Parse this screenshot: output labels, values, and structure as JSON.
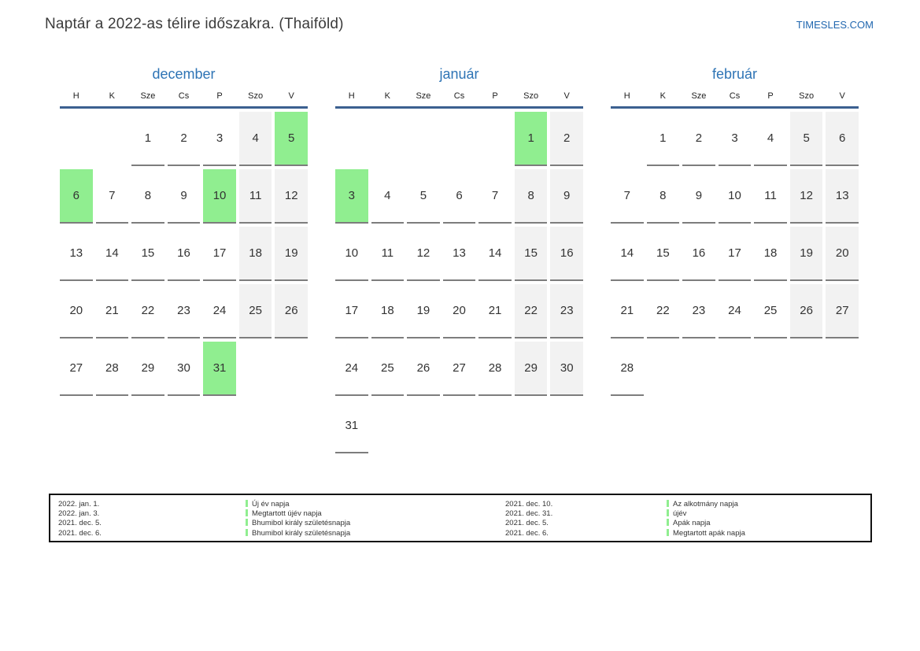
{
  "page": {
    "title": "Naptár a 2022-as télire időszakra. (Thaiföld)",
    "site_link": "TIMESLES.COM"
  },
  "colors": {
    "accent_blue": "#2e74b5",
    "link_blue": "#2268b0",
    "header_line": "#3c6090",
    "holiday_green": "#90ee90",
    "weekend_gray": "#f2f2f2",
    "underline_gray": "#7d7d7d"
  },
  "day_headers": [
    "H",
    "K",
    "Sze",
    "Cs",
    "P",
    "Szo",
    "V"
  ],
  "months": [
    {
      "name": "december",
      "weeks": [
        [
          {
            "d": "",
            "t": "e"
          },
          {
            "d": "",
            "t": "e"
          },
          {
            "d": "1",
            "t": "n"
          },
          {
            "d": "2",
            "t": "n"
          },
          {
            "d": "3",
            "t": "n"
          },
          {
            "d": "4",
            "t": "w"
          },
          {
            "d": "5",
            "t": "h"
          }
        ],
        [
          {
            "d": "6",
            "t": "h"
          },
          {
            "d": "7",
            "t": "n"
          },
          {
            "d": "8",
            "t": "n"
          },
          {
            "d": "9",
            "t": "n"
          },
          {
            "d": "10",
            "t": "h"
          },
          {
            "d": "11",
            "t": "w"
          },
          {
            "d": "12",
            "t": "w"
          }
        ],
        [
          {
            "d": "13",
            "t": "n"
          },
          {
            "d": "14",
            "t": "n"
          },
          {
            "d": "15",
            "t": "n"
          },
          {
            "d": "16",
            "t": "n"
          },
          {
            "d": "17",
            "t": "n"
          },
          {
            "d": "18",
            "t": "w"
          },
          {
            "d": "19",
            "t": "w"
          }
        ],
        [
          {
            "d": "20",
            "t": "n"
          },
          {
            "d": "21",
            "t": "n"
          },
          {
            "d": "22",
            "t": "n"
          },
          {
            "d": "23",
            "t": "n"
          },
          {
            "d": "24",
            "t": "n"
          },
          {
            "d": "25",
            "t": "w"
          },
          {
            "d": "26",
            "t": "w"
          }
        ],
        [
          {
            "d": "27",
            "t": "n"
          },
          {
            "d": "28",
            "t": "n"
          },
          {
            "d": "29",
            "t": "n"
          },
          {
            "d": "30",
            "t": "n"
          },
          {
            "d": "31",
            "t": "h"
          },
          {
            "d": "",
            "t": "e"
          },
          {
            "d": "",
            "t": "e"
          }
        ]
      ]
    },
    {
      "name": "január",
      "weeks": [
        [
          {
            "d": "",
            "t": "e"
          },
          {
            "d": "",
            "t": "e"
          },
          {
            "d": "",
            "t": "e"
          },
          {
            "d": "",
            "t": "e"
          },
          {
            "d": "",
            "t": "e"
          },
          {
            "d": "1",
            "t": "h"
          },
          {
            "d": "2",
            "t": "w"
          }
        ],
        [
          {
            "d": "3",
            "t": "h"
          },
          {
            "d": "4",
            "t": "n"
          },
          {
            "d": "5",
            "t": "n"
          },
          {
            "d": "6",
            "t": "n"
          },
          {
            "d": "7",
            "t": "n"
          },
          {
            "d": "8",
            "t": "w"
          },
          {
            "d": "9",
            "t": "w"
          }
        ],
        [
          {
            "d": "10",
            "t": "n"
          },
          {
            "d": "11",
            "t": "n"
          },
          {
            "d": "12",
            "t": "n"
          },
          {
            "d": "13",
            "t": "n"
          },
          {
            "d": "14",
            "t": "n"
          },
          {
            "d": "15",
            "t": "w"
          },
          {
            "d": "16",
            "t": "w"
          }
        ],
        [
          {
            "d": "17",
            "t": "n"
          },
          {
            "d": "18",
            "t": "n"
          },
          {
            "d": "19",
            "t": "n"
          },
          {
            "d": "20",
            "t": "n"
          },
          {
            "d": "21",
            "t": "n"
          },
          {
            "d": "22",
            "t": "w"
          },
          {
            "d": "23",
            "t": "w"
          }
        ],
        [
          {
            "d": "24",
            "t": "n"
          },
          {
            "d": "25",
            "t": "n"
          },
          {
            "d": "26",
            "t": "n"
          },
          {
            "d": "27",
            "t": "n"
          },
          {
            "d": "28",
            "t": "n"
          },
          {
            "d": "29",
            "t": "w"
          },
          {
            "d": "30",
            "t": "w"
          }
        ],
        [
          {
            "d": "31",
            "t": "n"
          },
          {
            "d": "",
            "t": "e"
          },
          {
            "d": "",
            "t": "e"
          },
          {
            "d": "",
            "t": "e"
          },
          {
            "d": "",
            "t": "e"
          },
          {
            "d": "",
            "t": "e"
          },
          {
            "d": "",
            "t": "e"
          }
        ]
      ]
    },
    {
      "name": "február",
      "weeks": [
        [
          {
            "d": "",
            "t": "e"
          },
          {
            "d": "1",
            "t": "n"
          },
          {
            "d": "2",
            "t": "n"
          },
          {
            "d": "3",
            "t": "n"
          },
          {
            "d": "4",
            "t": "n"
          },
          {
            "d": "5",
            "t": "w"
          },
          {
            "d": "6",
            "t": "w"
          }
        ],
        [
          {
            "d": "7",
            "t": "n"
          },
          {
            "d": "8",
            "t": "n"
          },
          {
            "d": "9",
            "t": "n"
          },
          {
            "d": "10",
            "t": "n"
          },
          {
            "d": "11",
            "t": "n"
          },
          {
            "d": "12",
            "t": "w"
          },
          {
            "d": "13",
            "t": "w"
          }
        ],
        [
          {
            "d": "14",
            "t": "n"
          },
          {
            "d": "15",
            "t": "n"
          },
          {
            "d": "16",
            "t": "n"
          },
          {
            "d": "17",
            "t": "n"
          },
          {
            "d": "18",
            "t": "n"
          },
          {
            "d": "19",
            "t": "w"
          },
          {
            "d": "20",
            "t": "w"
          }
        ],
        [
          {
            "d": "21",
            "t": "n"
          },
          {
            "d": "22",
            "t": "n"
          },
          {
            "d": "23",
            "t": "n"
          },
          {
            "d": "24",
            "t": "n"
          },
          {
            "d": "25",
            "t": "n"
          },
          {
            "d": "26",
            "t": "w"
          },
          {
            "d": "27",
            "t": "w"
          }
        ],
        [
          {
            "d": "28",
            "t": "n"
          },
          {
            "d": "",
            "t": "e"
          },
          {
            "d": "",
            "t": "e"
          },
          {
            "d": "",
            "t": "e"
          },
          {
            "d": "",
            "t": "e"
          },
          {
            "d": "",
            "t": "e"
          },
          {
            "d": "",
            "t": "e"
          }
        ]
      ]
    }
  ],
  "legend": {
    "entries": [
      {
        "date": "2022. jan. 1.",
        "name": "Új év napja"
      },
      {
        "date": "2022. jan. 3.",
        "name": "Megtartott újév napja"
      },
      {
        "date": "2021. dec. 5.",
        "name": "Bhumibol király születésnapja"
      },
      {
        "date": "2021. dec. 6.",
        "name": "Bhumibol király születésnapja"
      },
      {
        "date": "2021. dec. 10.",
        "name": "Az alkotmány napja"
      },
      {
        "date": "2021. dec. 31.",
        "name": "újév"
      },
      {
        "date": "2021. dec. 5.",
        "name": "Apák napja"
      },
      {
        "date": "2021. dec. 6.",
        "name": "Megtartott apák napja"
      }
    ]
  }
}
